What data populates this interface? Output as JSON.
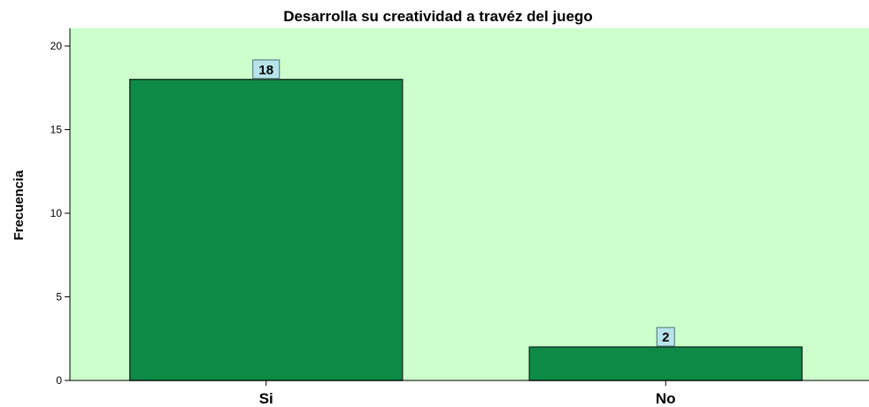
{
  "chart_data": {
    "type": "bar",
    "title": "Desarrolla su creatividad a travéz del juego",
    "xlabel": "",
    "ylabel": "Frecuencia",
    "categories": [
      "Si",
      "No"
    ],
    "values": [
      18,
      2
    ],
    "data_labels": [
      "18",
      "2"
    ],
    "ylim": [
      0,
      20
    ],
    "yticks": [
      0,
      5,
      10,
      15,
      20
    ],
    "ytick_labels": [
      "0",
      "5",
      "10",
      "15",
      "20"
    ],
    "grid": false,
    "legend": "none",
    "colors": {
      "plot_background": "#ccffcc",
      "bar_fill": "#0e8a47",
      "bar_stroke": "#1b3a25",
      "label_box_fill": "#b7e4ea",
      "label_box_stroke": "#4b6f73"
    }
  }
}
